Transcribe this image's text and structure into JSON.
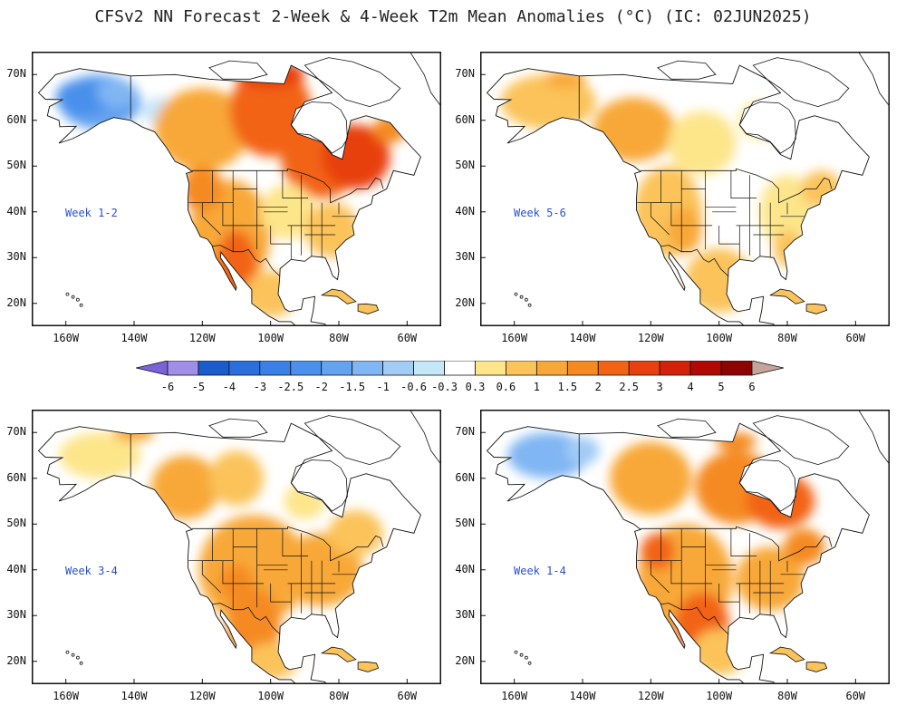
{
  "title": "CFSv2 NN Forecast 2-Week & 4-Week T2m Mean Anomalies (°C) (IC: 02JUN2025)",
  "lat_labels": [
    "70N",
    "60N",
    "50N",
    "40N",
    "30N",
    "20N"
  ],
  "lon_labels": [
    "160W",
    "140W",
    "120W",
    "100W",
    "80W",
    "60W"
  ],
  "panels": [
    {
      "label": "Week 1-2",
      "pattern": "west-hot-alaska-cold"
    },
    {
      "label": "Week 5-6",
      "pattern": "mild-warm"
    },
    {
      "label": "Week 3-4",
      "pattern": "broad-warm"
    },
    {
      "label": "Week 1-4",
      "pattern": "warm-alaska-cold"
    }
  ],
  "colorbar": {
    "ticks": [
      "-6",
      "-5",
      "-4",
      "-3",
      "-2.5",
      "-2",
      "-1.5",
      "-1",
      "-0.6",
      "-0.3",
      "0.3",
      "0.6",
      "1",
      "1.5",
      "2",
      "2.5",
      "3",
      "4",
      "5",
      "6"
    ],
    "colors": [
      "#9f8fe8",
      "#1b5ccc",
      "#2a6fdc",
      "#3a80e6",
      "#4a90ec",
      "#64a3f0",
      "#80b6f3",
      "#a2cbf6",
      "#c6e7f8",
      "#ffffff",
      "#fde58a",
      "#fbc35a",
      "#f8a838",
      "#f58a20",
      "#f26414",
      "#e8400e",
      "#d32208",
      "#b10a06",
      "#8c0404"
    ],
    "left_arrow_color": "#7a62d8",
    "right_arrow_color": "#c4a49b"
  }
}
